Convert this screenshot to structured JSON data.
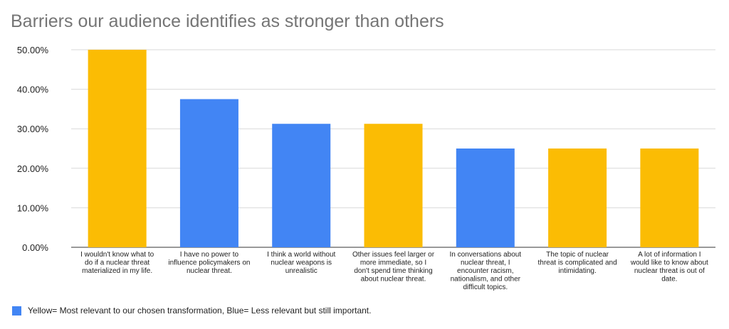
{
  "colors": {
    "yellow": "#fbbc04",
    "blue": "#4285f4",
    "grid": "#d9d9d9",
    "text": "#222222",
    "title": "#757575"
  },
  "chart_data": {
    "type": "bar",
    "title": "Barriers our audience identifies as stronger than others",
    "xlabel": "",
    "ylabel": "",
    "ylim": [
      0,
      0.5
    ],
    "yticks": [
      "0.00%",
      "10.00%",
      "20.00%",
      "30.00%",
      "40.00%",
      "50.00%"
    ],
    "grid": true,
    "legend_position": "bottom",
    "categories": [
      [
        "I wouldn't know what to",
        "do if a nuclear threat",
        "materialized in my life."
      ],
      [
        "I have no power to",
        "influence policymakers on",
        "nuclear threat."
      ],
      [
        "I think a world without",
        "nuclear weapons is",
        "unrealistic"
      ],
      [
        "Other issues feel larger or",
        "more immediate, so I",
        "don't spend time thinking",
        "about nuclear threat."
      ],
      [
        "In conversations about",
        "nuclear threat, I",
        "encounter racism,",
        "nationalism, and other",
        "difficult topics."
      ],
      [
        "The topic of nuclear",
        "threat is complicated and",
        "intimidating."
      ],
      [
        "A lot of information I",
        "would like to know about",
        "nuclear threat is out of",
        "date."
      ]
    ],
    "values": [
      0.5,
      0.375,
      0.3125,
      0.3125,
      0.25,
      0.25,
      0.25
    ],
    "bar_colors": [
      "yellow",
      "blue",
      "blue",
      "yellow",
      "blue",
      "yellow",
      "yellow"
    ],
    "legend": "Yellow= Most relevant to our chosen transformation, Blue= Less relevant but still important."
  }
}
